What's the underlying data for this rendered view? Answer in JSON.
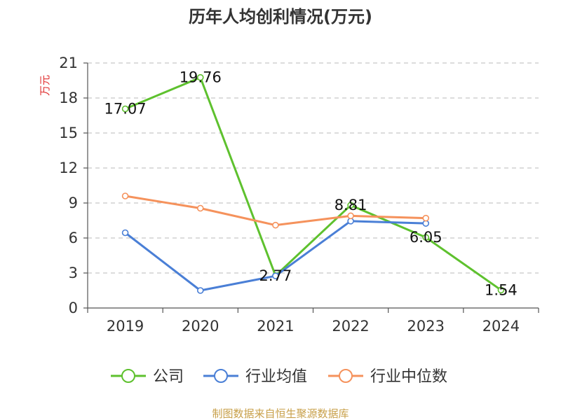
{
  "chart_data": {
    "type": "line",
    "title": "历年人均创利情况(万元)",
    "ylabel": "万元",
    "xlabel": "",
    "categories": [
      "2019",
      "2020",
      "2021",
      "2022",
      "2023",
      "2024"
    ],
    "yticks": [
      0,
      3,
      6,
      9,
      12,
      15,
      18,
      21
    ],
    "ylim": [
      0,
      21
    ],
    "grid": "horizontal-dashed",
    "legend_position": "bottom",
    "series": [
      {
        "name": "公司",
        "color": "#5ec12e",
        "values": [
          17.07,
          19.76,
          2.77,
          8.81,
          6.05,
          1.54
        ],
        "labels": [
          "17.07",
          "19.76",
          "2.77",
          "8.81",
          "6.05",
          "1.54"
        ]
      },
      {
        "name": "行业均值",
        "color": "#4a7fd6",
        "values": [
          6.45,
          1.5,
          2.75,
          7.45,
          7.25,
          null
        ]
      },
      {
        "name": "行业中位数",
        "color": "#f5925c",
        "values": [
          9.6,
          8.55,
          7.1,
          7.9,
          7.7,
          null
        ]
      }
    ],
    "source": "制图数据来自恒生聚源数据库",
    "source_color": "#c8a04a",
    "ylabel_color": "#e03030"
  }
}
